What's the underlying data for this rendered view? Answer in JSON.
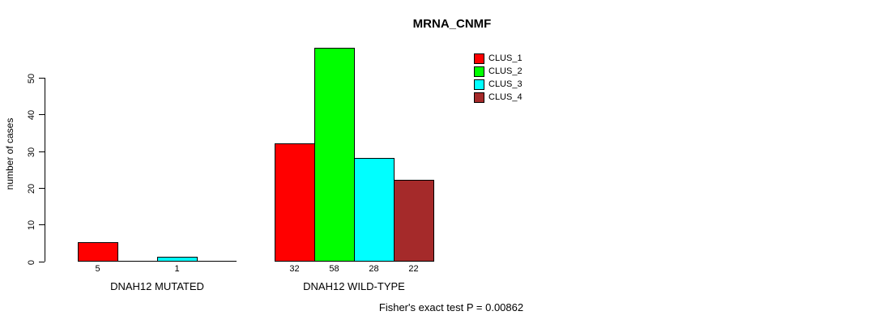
{
  "chart_data": {
    "type": "bar",
    "title": "MRNA_CNMF",
    "ylabel": "number of cases",
    "xlabel": "",
    "ylim": [
      0,
      58
    ],
    "y_ticks": [
      0,
      10,
      20,
      30,
      40,
      50
    ],
    "grid": false,
    "legend_position": "top-right",
    "series_names": [
      "CLUS_1",
      "CLUS_2",
      "CLUS_3",
      "CLUS_4"
    ],
    "series_colors": [
      "#ff0000",
      "#00ff00",
      "#00ffff",
      "#a52a2a"
    ],
    "bar_border_color": "#000000",
    "groups": [
      {
        "label": "DNAH12 MUTATED",
        "values": [
          5,
          0,
          1,
          0
        ],
        "bar_labels": [
          "5",
          null,
          "1",
          null
        ]
      },
      {
        "label": "DNAH12 WILD-TYPE",
        "values": [
          32,
          58,
          28,
          22
        ],
        "bar_labels": [
          "32",
          "58",
          "28",
          "22"
        ]
      }
    ],
    "annotation": "Fisher's exact test P = 0.00862"
  }
}
